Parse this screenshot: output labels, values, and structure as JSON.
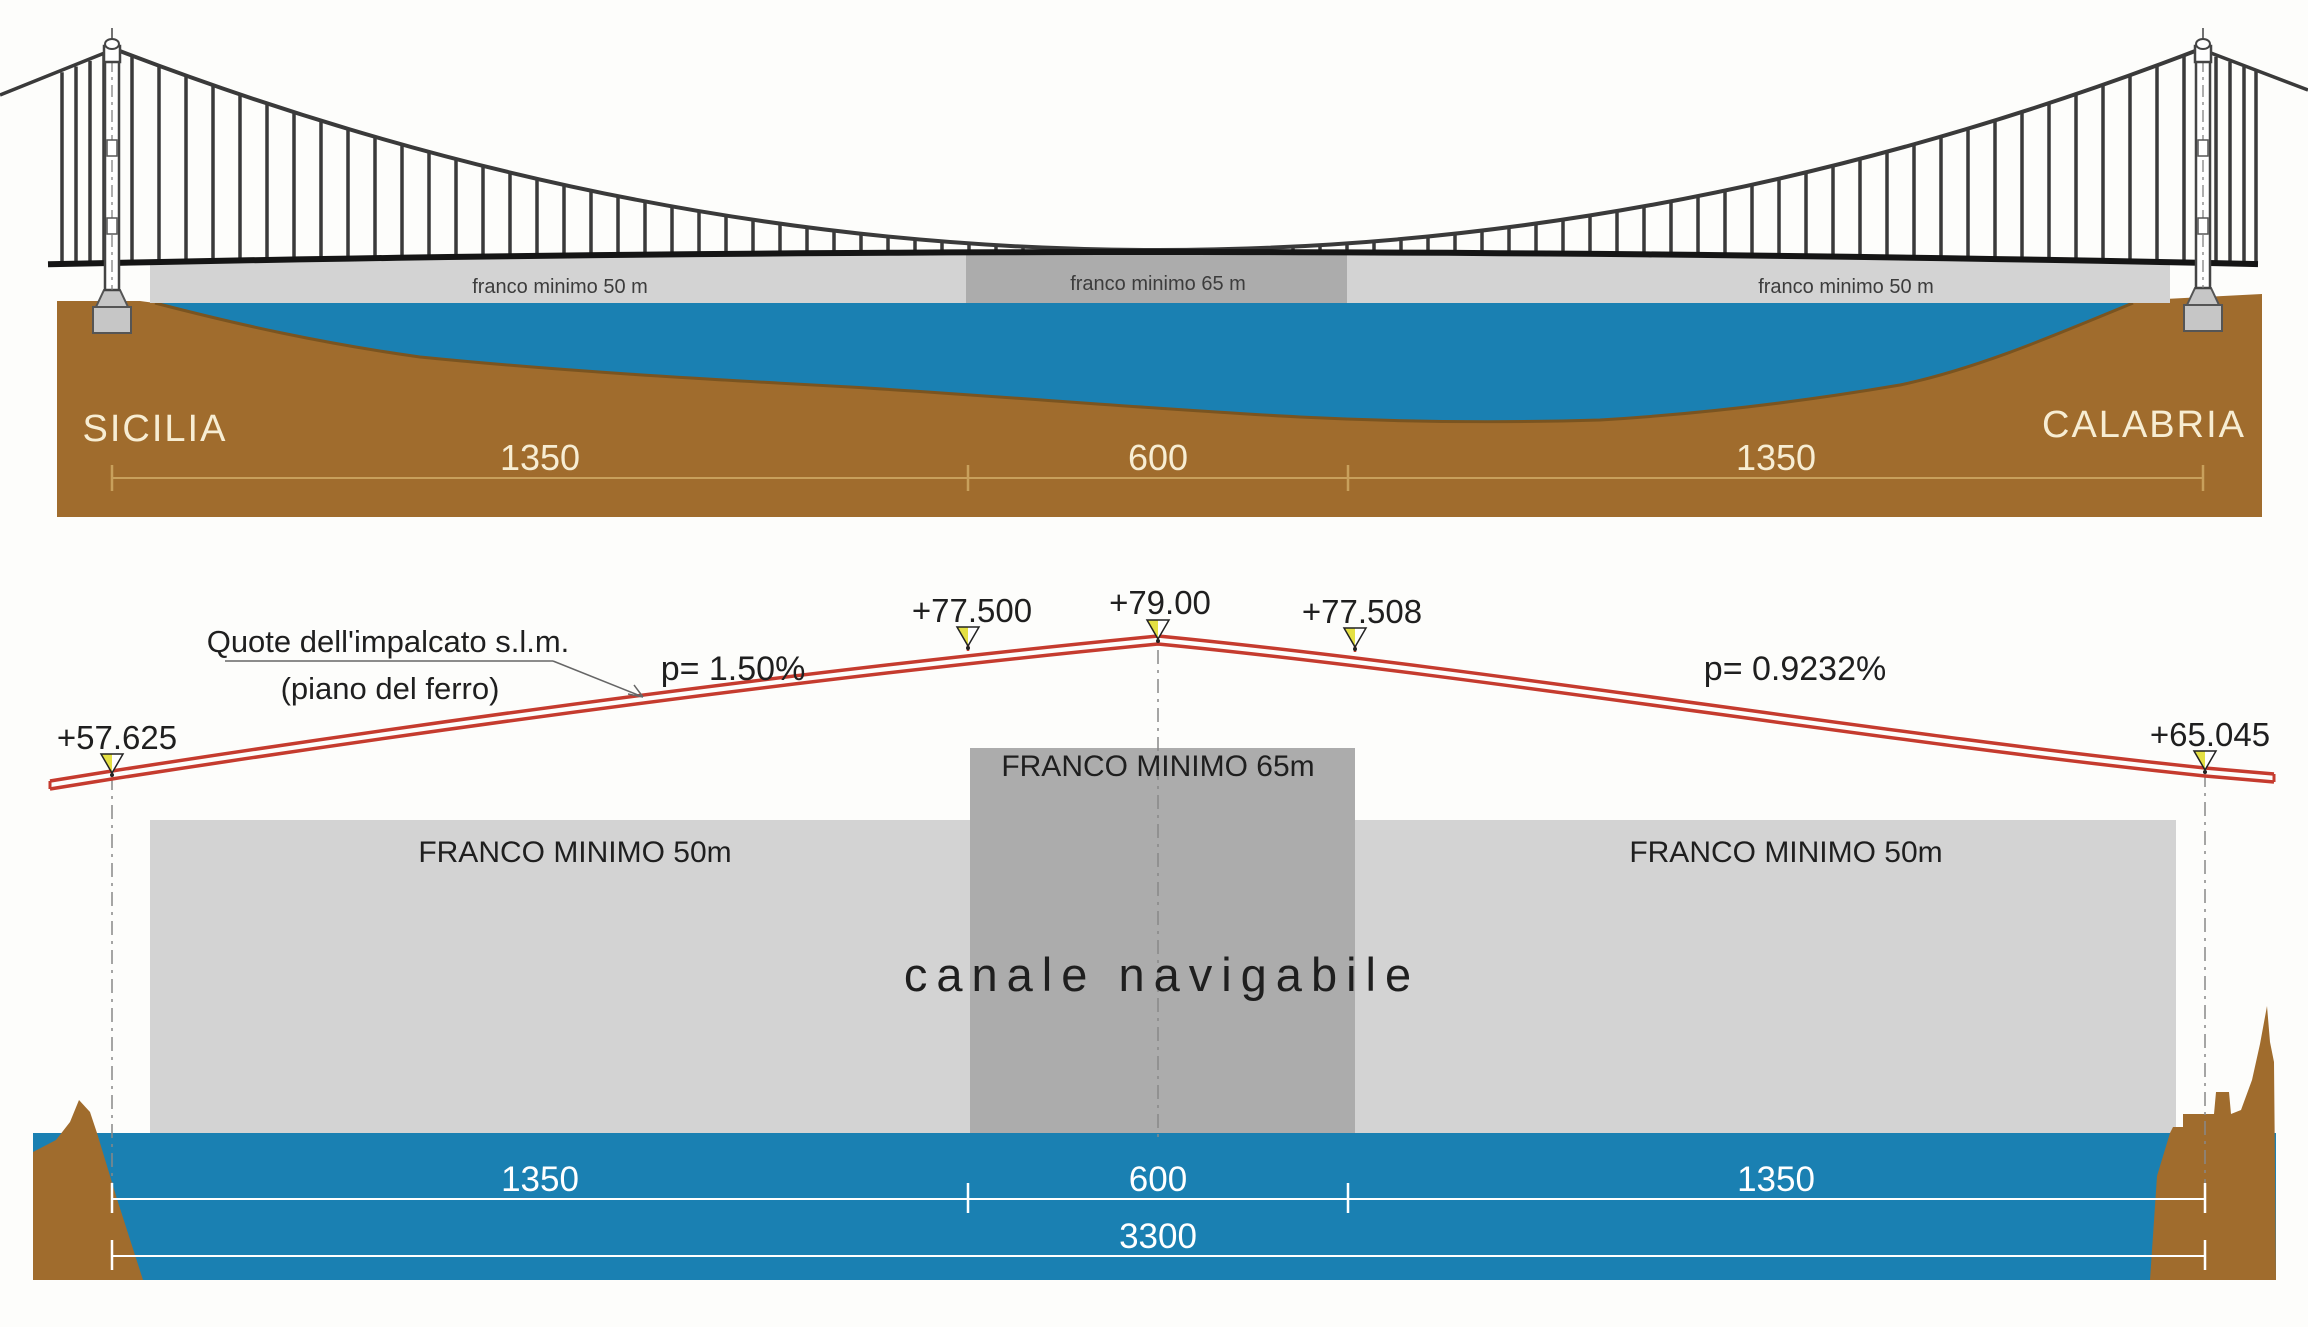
{
  "colors": {
    "background": "#fdfdfb",
    "water": "#1a80b2",
    "terrain": "#a06c2d",
    "terrain_edge": "#7a5420",
    "band_light": "#d3d3d3",
    "band_dark": "#acacac",
    "deck_red": "#c53b2e",
    "marker_yellow": "#e4e043",
    "dim_tan_line": "#c8a05c",
    "dim_cream_text": "#f7edd3",
    "dim_white": "#ffffff",
    "ink": "#1f1f1f",
    "ink_soft": "#3c3c3c",
    "structure": "#3a3a3a",
    "deck_black": "#151515",
    "foundation_fill": "#c6c6c6",
    "foundation_stroke": "#555555"
  },
  "top_drawing": {
    "clearance_left": "franco minimo 50 m",
    "clearance_center": "franco minimo 65 m",
    "clearance_right": "franco minimo 50 m",
    "shore_left": "SICILIA",
    "shore_right": "CALABRIA",
    "dim_left": "1350",
    "dim_center": "600",
    "dim_right": "1350"
  },
  "bottom_drawing": {
    "note_line1": "Quote dell'impalcato s.l.m.",
    "note_line2": "(piano del ferro)",
    "slope_left": "p= 1.50%",
    "slope_right": "p= 0.9232%",
    "elev_left": "+57.625",
    "elev_left_tangent": "+77.500",
    "elev_crest": "+79.00",
    "elev_right_tangent": "+77.508",
    "elev_right": "+65.045",
    "clearance_center": "FRANCO MINIMO 65m",
    "clearance_left": "FRANCO MINIMO 50m",
    "clearance_right": "FRANCO MINIMO 50m",
    "channel": "canale navigabile",
    "dim_left": "1350",
    "dim_center": "600",
    "dim_right": "1350",
    "dim_total": "3300"
  }
}
